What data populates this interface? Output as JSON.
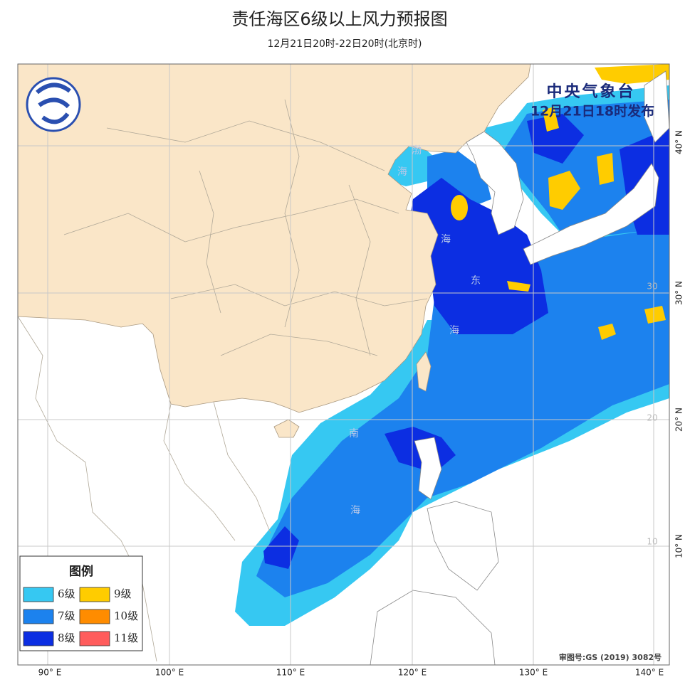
{
  "header": {
    "title": "责任海区6级以上风力预报图",
    "subtitle": "12月21日20时-22日20时(北京时)"
  },
  "issuer": {
    "name": "中央气象台",
    "time": "12月21日18时发布"
  },
  "sea_labels": [
    "渤",
    "海",
    "海",
    "东",
    "海",
    "南",
    "海"
  ],
  "lon_labels": [
    "90° E",
    "100° E",
    "110° E",
    "120° E",
    "130° E",
    "140° E"
  ],
  "lat_labels": [
    "40° N",
    "30° N",
    "20° N",
    "10° N"
  ],
  "inner_lat_labels": [
    "30",
    "20",
    "10"
  ],
  "legend": {
    "title": "图例",
    "items": [
      {
        "label": "6级",
        "color": "#36c8f2"
      },
      {
        "label": "7级",
        "color": "#1c82ee"
      },
      {
        "label": "8级",
        "color": "#0c2ee2"
      },
      {
        "label": "9级",
        "color": "#ffcc00"
      },
      {
        "label": "10级",
        "color": "#ff8c00"
      },
      {
        "label": "11级",
        "color": "#ff5c5c"
      }
    ]
  },
  "approval": "审图号:GS (2019) 3082号"
}
